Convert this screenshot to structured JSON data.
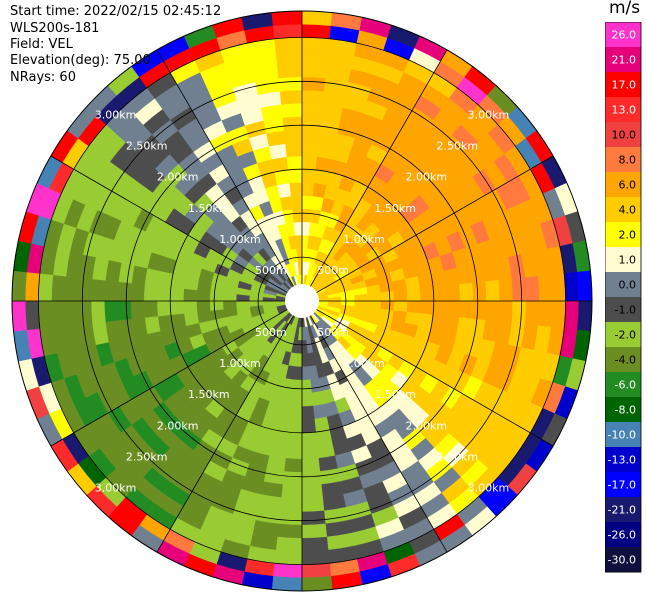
{
  "info": {
    "start_time": "Start time: 2022/02/15 02:45:12",
    "instrument": "WLS200s-181",
    "field": "Field: VEL",
    "elevation": "Elevation(deg): 75.00",
    "nrays": "NRays: 60"
  },
  "colorbar": {
    "unit": "m/s",
    "tick_labels": [
      "26.0",
      "21.0",
      "17.0",
      "13.0",
      "10.0",
      "8.0",
      "6.0",
      "4.0",
      "2.0",
      "1.0",
      "0.0",
      "-1.0",
      "-2.0",
      "-4.0",
      "-6.0",
      "-8.0",
      "-10.0",
      "-13.0",
      "-17.0",
      "-21.0",
      "-26.0",
      "-30.0"
    ],
    "colors": [
      "#ff33cc",
      "#e6007a",
      "#ff0000",
      "#ff2a2a",
      "#f04040",
      "#ff7a3c",
      "#ffa500",
      "#ffcc00",
      "#ffff00",
      "#fffdd0",
      "#708090",
      "#4d4d4d",
      "#99cc33",
      "#6b8e23",
      "#228b22",
      "#006400",
      "#4682b4",
      "#0000cd",
      "#0000ff",
      "#191970",
      "#000080",
      "#101040"
    ]
  },
  "chart_data": {
    "type": "ppi_scan",
    "field": "VEL",
    "units": "m/s",
    "nrays": 60,
    "elevation_deg": 75.0,
    "range_rings_m": [
      500,
      1000,
      1500,
      2000,
      2500,
      3000
    ],
    "ring_labels": [
      "500m",
      "1.00km",
      "1.50km",
      "2.00km",
      "2.50km",
      "3.00km"
    ],
    "spoke_angles_deg": [
      0,
      30,
      60,
      90,
      120,
      150,
      180,
      210,
      240,
      270,
      300,
      330
    ],
    "max_range_m": 3300,
    "gate_spacing_m": 150,
    "clim": [
      -30,
      26
    ],
    "velocity_pattern": {
      "positive_toward_azimuth_deg": 60,
      "negative_toward_azimuth_deg": 240,
      "peak_outer_ms": 5.5,
      "zero_band_ms": 1.0,
      "outer_ring_noise_from_m": 3050
    }
  }
}
